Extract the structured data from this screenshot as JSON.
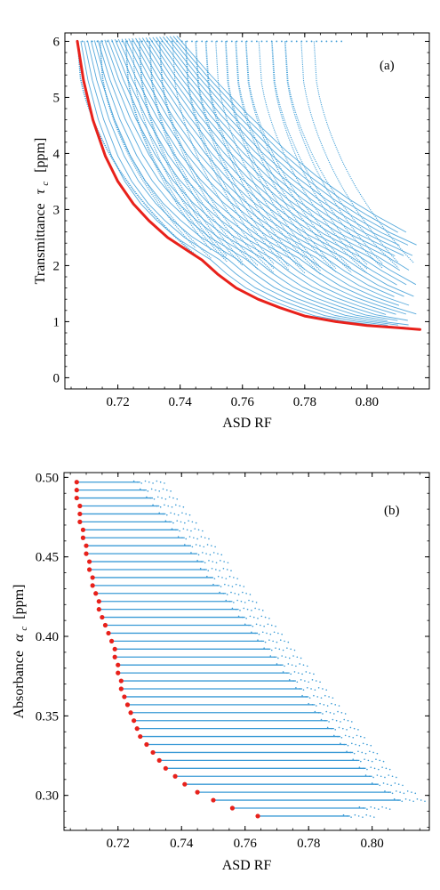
{
  "chart_data": [
    {
      "panel": "(a)",
      "type": "scatter",
      "xlabel": "ASD RF",
      "ylabel": "Transmittance",
      "ylabel_symbol": "τ",
      "ylabel_sub": "c",
      "ylabel_unit": "[ppm]",
      "xlim": [
        0.703,
        0.82
      ],
      "ylim": [
        -0.2,
        6.15
      ],
      "xticks": [
        "0.72",
        "0.74",
        "0.76",
        "0.78",
        "0.80"
      ],
      "xtick_values": [
        0.72,
        0.74,
        0.76,
        0.78,
        0.8
      ],
      "yticks": [
        "0",
        "1",
        "2",
        "3",
        "4",
        "5",
        "6"
      ],
      "ytick_values": [
        0,
        1,
        2,
        3,
        4,
        5,
        6
      ],
      "colors": {
        "series": "#3b9bd6",
        "frontier": "#e8211b"
      },
      "frontier": {
        "x": [
          0.707,
          0.709,
          0.712,
          0.716,
          0.72,
          0.725,
          0.73,
          0.736,
          0.742,
          0.747,
          0.752,
          0.758,
          0.765,
          0.772,
          0.78,
          0.79,
          0.8,
          0.81,
          0.817
        ],
        "y": [
          6.0,
          5.3,
          4.6,
          3.95,
          3.5,
          3.1,
          2.8,
          2.5,
          2.28,
          2.1,
          1.85,
          1.6,
          1.4,
          1.25,
          1.1,
          1.0,
          0.93,
          0.89,
          0.86
        ]
      },
      "line_tops_x": [
        0.707,
        0.714,
        0.722,
        0.724,
        0.726,
        0.729,
        0.732,
        0.736,
        0.74,
        0.743,
        0.746,
        0.749,
        0.752,
        0.755,
        0.758,
        0.762,
        0.766,
        0.77,
        0.775,
        0.779
      ],
      "line_end_x": [
        0.745,
        0.75,
        0.755,
        0.76,
        0.765,
        0.77,
        0.775,
        0.78,
        0.785,
        0.79,
        0.795,
        0.8,
        0.805,
        0.81,
        0.815
      ]
    },
    {
      "panel": "(b)",
      "type": "scatter",
      "xlabel": "ASD RF",
      "ylabel": "Absorbance",
      "ylabel_symbol": "α",
      "ylabel_sub": "c",
      "ylabel_unit": "[ppm]",
      "xlim": [
        0.703,
        0.818
      ],
      "ylim": [
        0.278,
        0.503
      ],
      "xticks": [
        "0.72",
        "0.74",
        "0.76",
        "0.78",
        "0.80"
      ],
      "xtick_values": [
        0.72,
        0.74,
        0.76,
        0.78,
        0.8
      ],
      "yticks": [
        "0.30",
        "0.35",
        "0.40",
        "0.45",
        "0.50"
      ],
      "ytick_values": [
        0.3,
        0.35,
        0.4,
        0.45,
        0.5
      ],
      "colors": {
        "series": "#3b9bd6",
        "frontier": "#e8211b"
      },
      "frontier": {
        "y": [
          0.497,
          0.492,
          0.487,
          0.482,
          0.477,
          0.472,
          0.467,
          0.462,
          0.457,
          0.452,
          0.447,
          0.442,
          0.437,
          0.432,
          0.427,
          0.422,
          0.417,
          0.412,
          0.407,
          0.402,
          0.397,
          0.392,
          0.387,
          0.382,
          0.377,
          0.372,
          0.367,
          0.362,
          0.357,
          0.352,
          0.347,
          0.342,
          0.337,
          0.332,
          0.327,
          0.322,
          0.317,
          0.312,
          0.307,
          0.302,
          0.297,
          0.292,
          0.287
        ],
        "x": [
          0.707,
          0.707,
          0.707,
          0.708,
          0.708,
          0.708,
          0.709,
          0.709,
          0.71,
          0.71,
          0.711,
          0.711,
          0.712,
          0.712,
          0.713,
          0.714,
          0.714,
          0.715,
          0.716,
          0.717,
          0.718,
          0.719,
          0.719,
          0.72,
          0.72,
          0.721,
          0.721,
          0.722,
          0.723,
          0.724,
          0.725,
          0.726,
          0.727,
          0.729,
          0.731,
          0.733,
          0.735,
          0.738,
          0.741,
          0.745,
          0.75,
          0.756,
          0.764
        ]
      },
      "row_end_x": [
        0.731,
        0.733,
        0.735,
        0.737,
        0.739,
        0.741,
        0.743,
        0.745,
        0.747,
        0.749,
        0.751,
        0.752,
        0.754,
        0.756,
        0.758,
        0.76,
        0.762,
        0.764,
        0.766,
        0.768,
        0.77,
        0.772,
        0.774,
        0.776,
        0.778,
        0.78,
        0.782,
        0.784,
        0.786,
        0.788,
        0.79,
        0.792,
        0.794,
        0.796,
        0.798,
        0.8,
        0.802,
        0.804,
        0.806,
        0.81,
        0.813,
        0.802,
        0.797
      ]
    }
  ]
}
